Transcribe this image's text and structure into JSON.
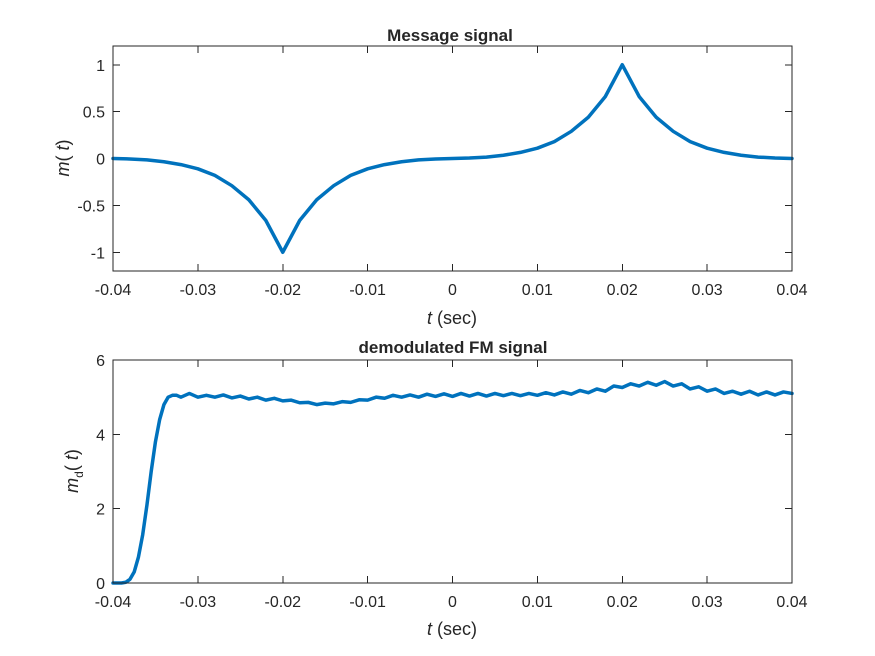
{
  "chart_data": [
    {
      "type": "line",
      "title": "Message signal",
      "xlabel": {
        "var": "t",
        "unit": " (sec)"
      },
      "ylabel": {
        "base": "m",
        "sub": "",
        "arg": "(  ",
        "var": "t",
        "close": ")"
      },
      "xlim": [
        -0.04,
        0.04
      ],
      "ylim": [
        -1.2,
        1.2
      ],
      "xticks": [
        -0.04,
        -0.03,
        -0.02,
        -0.01,
        0,
        0.01,
        0.02,
        0.03,
        0.04
      ],
      "xtick_labels": [
        "-0.04",
        "-0.03",
        "-0.02",
        "-0.01",
        "0",
        "0.01",
        "0.02",
        "0.03",
        "0.04"
      ],
      "yticks": [
        -1,
        -0.5,
        0,
        0.5,
        1
      ],
      "ytick_labels": [
        "-1",
        "-0.5",
        "0",
        "0.5",
        "1"
      ],
      "grid": false,
      "color": "#0072BD",
      "series": [
        {
          "x": [
            -0.04,
            -0.038,
            -0.036,
            -0.034,
            -0.032,
            -0.03,
            -0.028,
            -0.026,
            -0.024,
            -0.022,
            -0.02,
            -0.018,
            -0.016,
            -0.014,
            -0.012,
            -0.01,
            -0.008,
            -0.006,
            -0.004,
            -0.002,
            0,
            0.002,
            0.004,
            0.006,
            0.008,
            0.01,
            0.012,
            0.014,
            0.016,
            0.018,
            0.02,
            0.022,
            0.024,
            0.026,
            0.028,
            0.03,
            0.032,
            0.034,
            0.036,
            0.038,
            0.04
          ],
          "values": [
            0.0,
            -0.005,
            -0.015,
            -0.035,
            -0.065,
            -0.11,
            -0.18,
            -0.29,
            -0.44,
            -0.66,
            -1.0,
            -0.66,
            -0.44,
            -0.29,
            -0.18,
            -0.11,
            -0.065,
            -0.035,
            -0.015,
            -0.005,
            0.0,
            0.005,
            0.015,
            0.035,
            0.065,
            0.11,
            0.18,
            0.29,
            0.44,
            0.66,
            1.0,
            0.66,
            0.44,
            0.29,
            0.18,
            0.11,
            0.065,
            0.035,
            0.015,
            0.005,
            0.0
          ]
        }
      ]
    },
    {
      "type": "line",
      "title": "demodulated FM signal",
      "xlabel": {
        "var": "t",
        "unit": " (sec)"
      },
      "ylabel": {
        "base": "m",
        "sub": "d",
        "arg": "(  ",
        "var": "t",
        "close": ")"
      },
      "xlim": [
        -0.04,
        0.04
      ],
      "ylim": [
        0,
        6
      ],
      "xticks": [
        -0.04,
        -0.03,
        -0.02,
        -0.01,
        0,
        0.01,
        0.02,
        0.03,
        0.04
      ],
      "xtick_labels": [
        "-0.04",
        "-0.03",
        "-0.02",
        "-0.01",
        "0",
        "0.01",
        "0.02",
        "0.03",
        "0.04"
      ],
      "yticks": [
        0,
        2,
        4,
        6
      ],
      "ytick_labels": [
        "0",
        "2",
        "4",
        "6"
      ],
      "grid": false,
      "color": "#0072BD",
      "series": [
        {
          "x": [
            -0.04,
            -0.039,
            -0.0385,
            -0.038,
            -0.0375,
            -0.037,
            -0.0365,
            -0.036,
            -0.0355,
            -0.035,
            -0.0345,
            -0.034,
            -0.0335,
            -0.033,
            -0.0325,
            -0.032,
            -0.031,
            -0.03,
            -0.029,
            -0.028,
            -0.027,
            -0.026,
            -0.025,
            -0.024,
            -0.023,
            -0.022,
            -0.021,
            -0.02,
            -0.019,
            -0.018,
            -0.017,
            -0.016,
            -0.015,
            -0.014,
            -0.013,
            -0.012,
            -0.011,
            -0.01,
            -0.009,
            -0.008,
            -0.007,
            -0.006,
            -0.005,
            -0.004,
            -0.003,
            -0.002,
            -0.001,
            0,
            0.001,
            0.002,
            0.003,
            0.004,
            0.005,
            0.006,
            0.007,
            0.008,
            0.009,
            0.01,
            0.011,
            0.012,
            0.013,
            0.014,
            0.015,
            0.016,
            0.017,
            0.018,
            0.019,
            0.02,
            0.021,
            0.022,
            0.023,
            0.024,
            0.025,
            0.026,
            0.027,
            0.028,
            0.029,
            0.03,
            0.031,
            0.032,
            0.033,
            0.034,
            0.035,
            0.036,
            0.037,
            0.038,
            0.039,
            0.04
          ],
          "values": [
            0.0,
            0.0,
            0.02,
            0.1,
            0.3,
            0.7,
            1.3,
            2.1,
            3.0,
            3.8,
            4.4,
            4.8,
            5.0,
            5.05,
            5.05,
            5.0,
            5.1,
            5.0,
            5.05,
            5.0,
            5.06,
            4.98,
            5.03,
            4.95,
            5.0,
            4.92,
            4.97,
            4.9,
            4.92,
            4.85,
            4.86,
            4.8,
            4.84,
            4.82,
            4.88,
            4.86,
            4.93,
            4.92,
            5.0,
            4.97,
            5.05,
            5.0,
            5.06,
            5.0,
            5.08,
            5.02,
            5.09,
            5.02,
            5.1,
            5.03,
            5.1,
            5.03,
            5.1,
            5.04,
            5.1,
            5.04,
            5.1,
            5.05,
            5.12,
            5.06,
            5.14,
            5.08,
            5.18,
            5.12,
            5.22,
            5.16,
            5.3,
            5.26,
            5.36,
            5.3,
            5.4,
            5.32,
            5.42,
            5.3,
            5.36,
            5.22,
            5.28,
            5.16,
            5.22,
            5.1,
            5.16,
            5.08,
            5.16,
            5.06,
            5.14,
            5.06,
            5.14,
            5.1
          ]
        }
      ]
    }
  ]
}
